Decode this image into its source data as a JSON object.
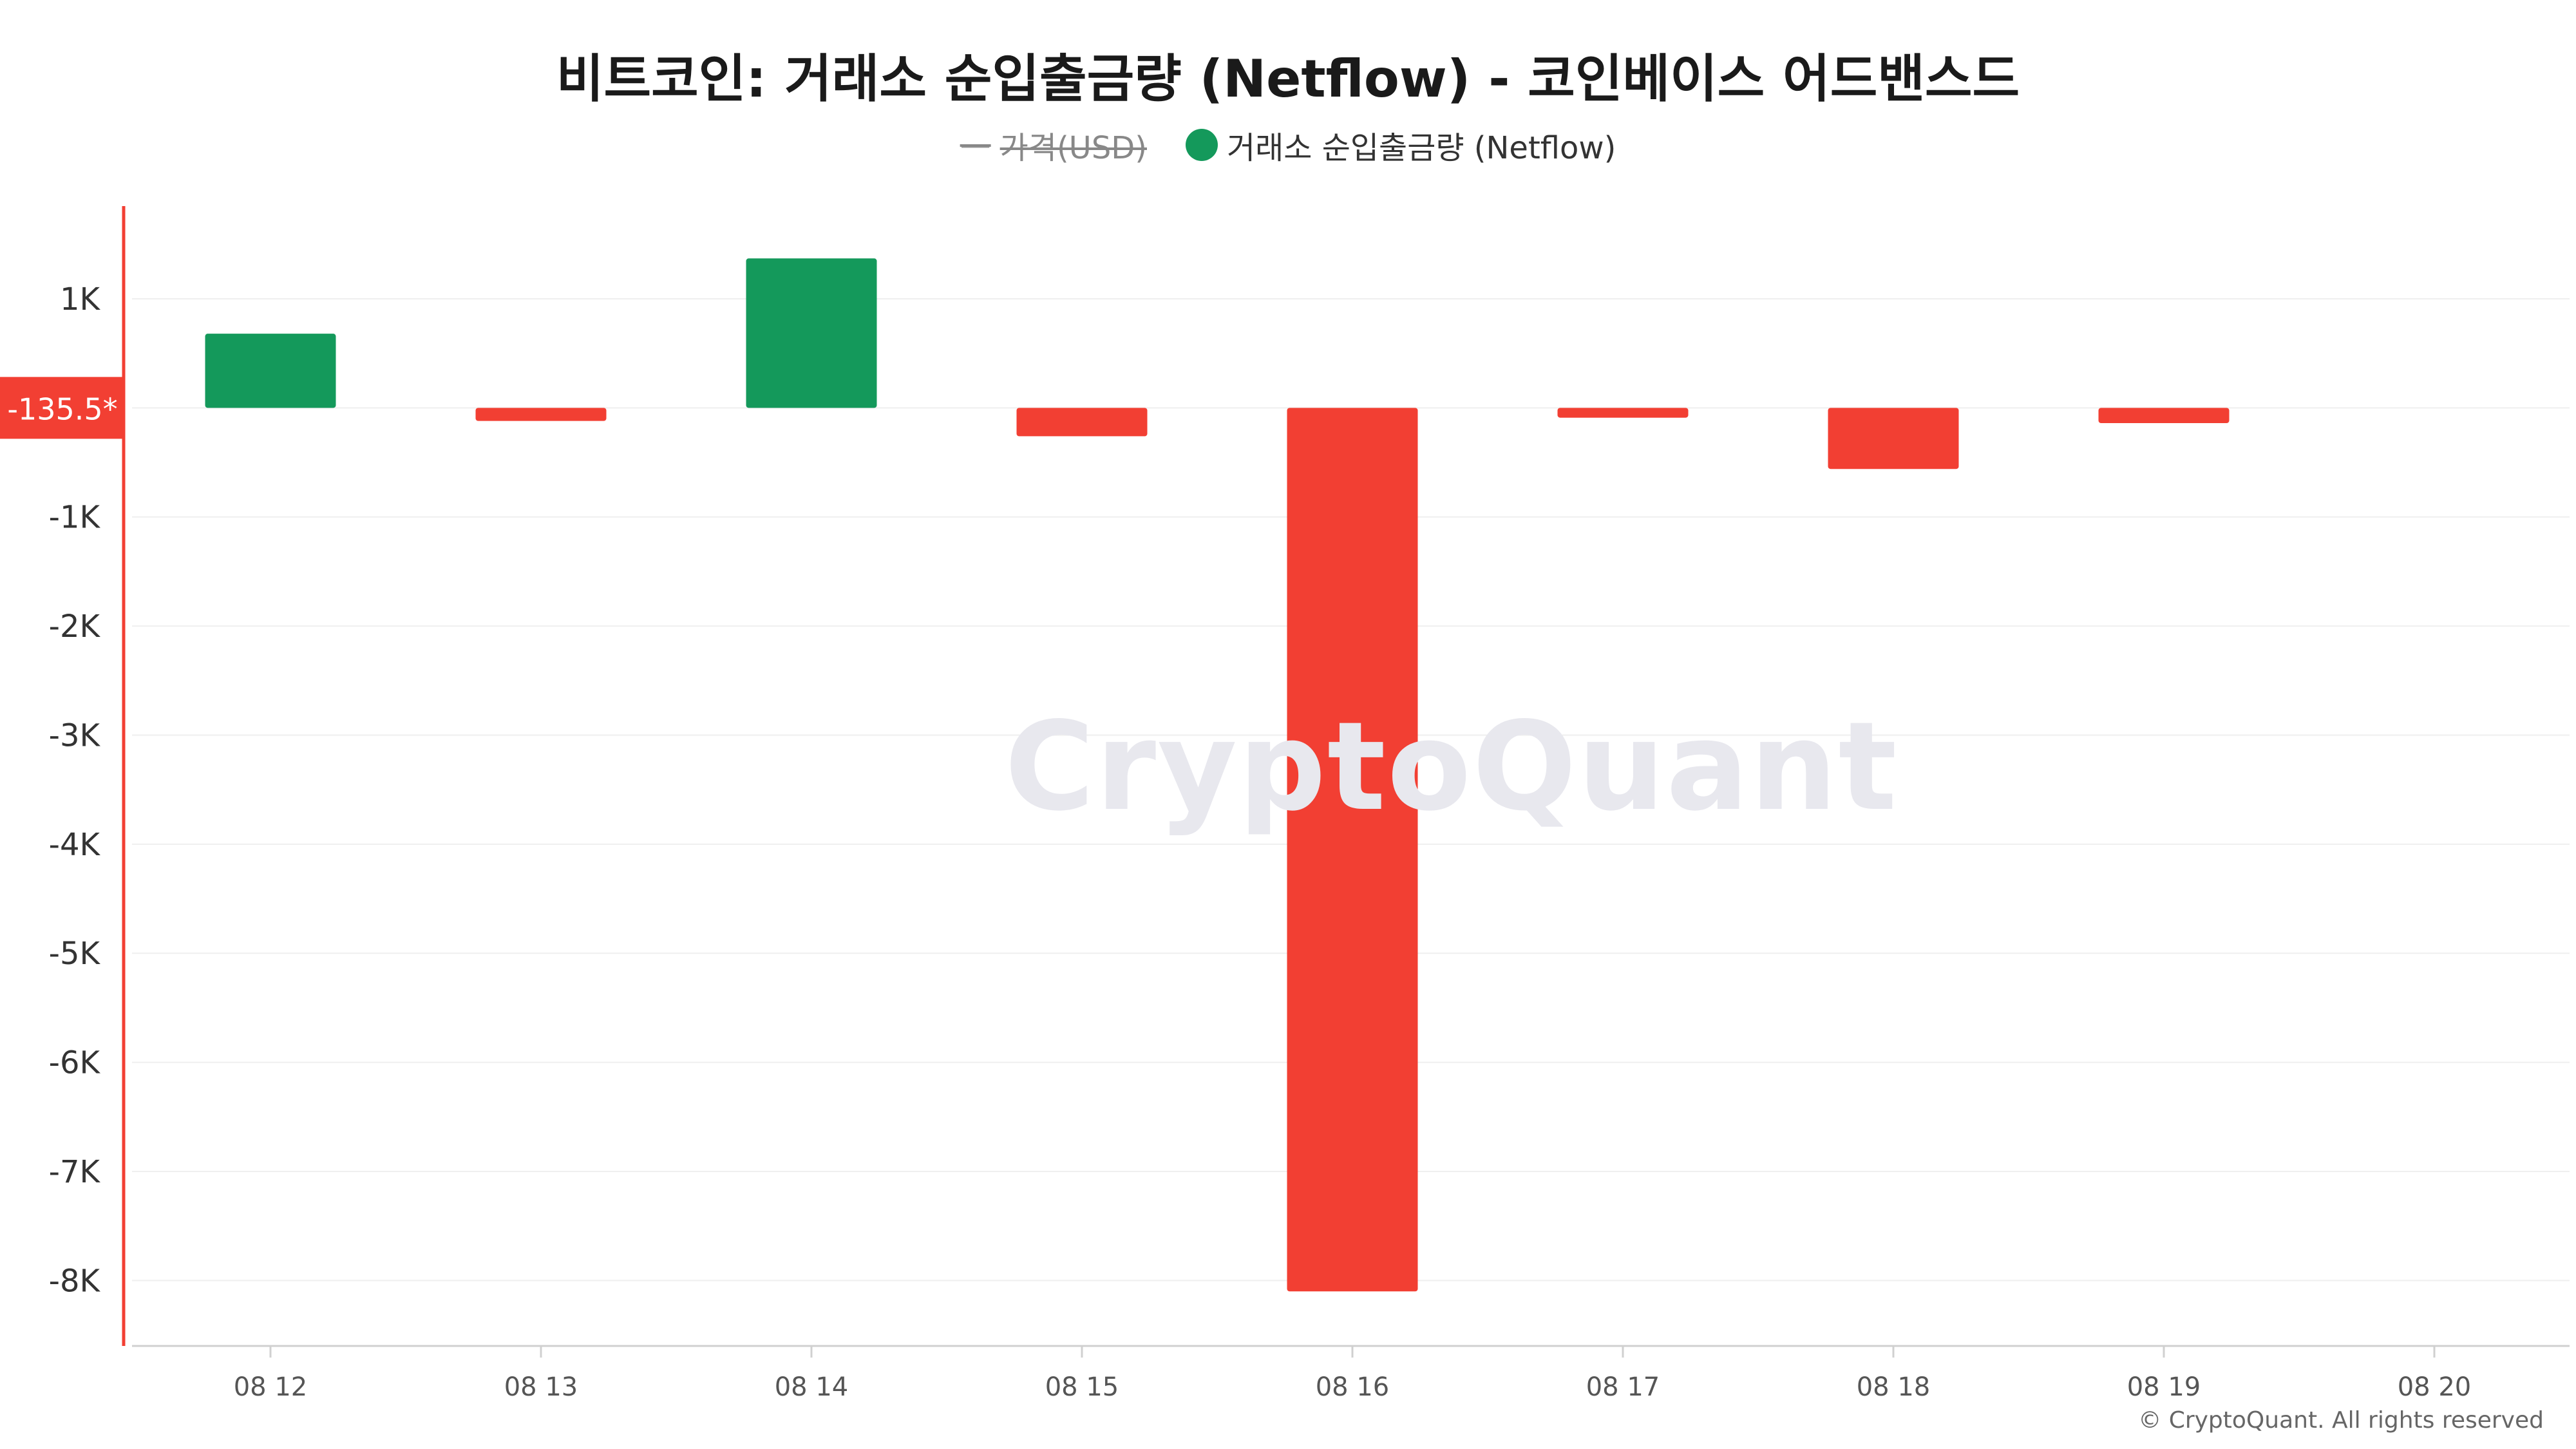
{
  "chart_data": {
    "type": "bar",
    "title": "비트코인: 거래소 순입출금량 (Netflow) - 코인베이스 어드밴스드",
    "categories": [
      "08 12",
      "08 13",
      "08 14",
      "08 15",
      "08 16",
      "08 17",
      "08 18",
      "08 19",
      "08 20"
    ],
    "series": [
      {
        "name": "거래소 순입출금량 (Netflow)",
        "values": [
          680,
          -120,
          1370,
          -260,
          -8100,
          -90,
          -560,
          -140,
          null
        ]
      }
    ],
    "disabled_series": [
      {
        "name": "가격(USD)"
      }
    ],
    "y_ticks": [
      {
        "value": 1000,
        "label": "1K"
      },
      {
        "value": -1000,
        "label": "-1K"
      },
      {
        "value": -2000,
        "label": "-2K"
      },
      {
        "value": -3000,
        "label": "-3K"
      },
      {
        "value": -4000,
        "label": "-4K"
      },
      {
        "value": -5000,
        "label": "-5K"
      },
      {
        "value": -6000,
        "label": "-6K"
      },
      {
        "value": -7000,
        "label": "-7K"
      },
      {
        "value": -8000,
        "label": "-8K"
      }
    ],
    "current_value_label": "-135.5*",
    "current_value": 0,
    "ylim": [
      -8600,
      1850
    ],
    "grid": true,
    "legend_position": "top-center",
    "colors": {
      "positive": "#14995b",
      "negative": "#f23f33",
      "axis_marker": "#f23f33",
      "grid": "#efefef",
      "axis": "#d0d0d0",
      "price_line": "#999999"
    }
  },
  "legend": {
    "price_dash": "—",
    "price_label": "가격(USD)",
    "netflow_label": "거래소 순입출금량 (Netflow)"
  },
  "watermark": "CryptoQuant",
  "copyright": "© CryptoQuant. All rights reserved"
}
